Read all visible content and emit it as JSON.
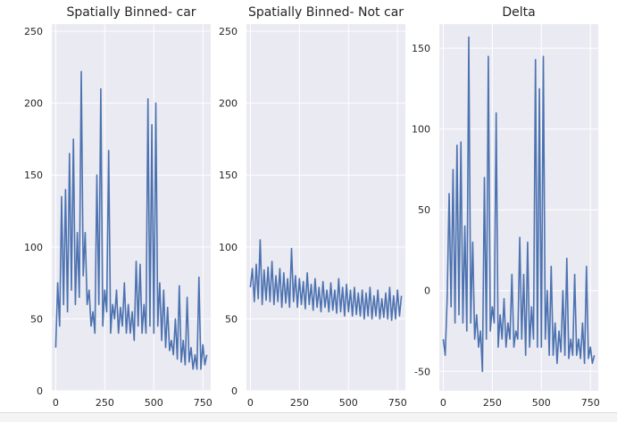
{
  "chart_data": [
    {
      "type": "line",
      "title": "Spatially Binned- car",
      "xlabel": "",
      "ylabel": "",
      "xlim": [
        -20,
        790
      ],
      "ylim": [
        0,
        255
      ],
      "xticks": [
        0,
        250,
        500,
        750
      ],
      "yticks": [
        0,
        50,
        100,
        150,
        200,
        250
      ],
      "xtick_labels": [
        "0",
        "250",
        "500",
        "750"
      ],
      "ytick_labels": [
        "0",
        "50",
        "100",
        "150",
        "200",
        "250"
      ],
      "grid": true,
      "background": "#eaeaf2",
      "line_color": "#4c72b0",
      "series": [
        {
          "x": [
            0,
            10,
            20,
            30,
            40,
            50,
            60,
            70,
            80,
            90,
            100,
            110,
            120,
            130,
            140,
            150,
            160,
            170,
            180,
            190,
            200,
            210,
            220,
            230,
            240,
            250,
            260,
            270,
            280,
            290,
            300,
            310,
            320,
            330,
            340,
            350,
            360,
            370,
            380,
            390,
            400,
            410,
            420,
            430,
            440,
            450,
            460,
            470,
            480,
            490,
            500,
            510,
            520,
            530,
            540,
            550,
            560,
            570,
            580,
            590,
            600,
            610,
            620,
            630,
            640,
            650,
            660,
            670,
            680,
            690,
            700,
            710,
            720,
            730,
            740,
            750,
            760,
            770
          ],
          "y": [
            30,
            75,
            45,
            135,
            60,
            140,
            55,
            165,
            70,
            175,
            60,
            110,
            65,
            222,
            80,
            110,
            60,
            70,
            45,
            55,
            40,
            150,
            60,
            210,
            45,
            70,
            55,
            167,
            40,
            60,
            50,
            70,
            40,
            58,
            45,
            75,
            40,
            60,
            40,
            55,
            35,
            90,
            45,
            88,
            40,
            60,
            40,
            203,
            45,
            185,
            40,
            200,
            45,
            75,
            35,
            70,
            30,
            58,
            28,
            35,
            25,
            50,
            22,
            73,
            20,
            35,
            18,
            65,
            20,
            30,
            15,
            25,
            15,
            79,
            15,
            32,
            18,
            25
          ]
        }
      ]
    },
    {
      "type": "line",
      "title": "Spatially Binned- Not car",
      "xlabel": "",
      "ylabel": "",
      "xlim": [
        -20,
        790
      ],
      "ylim": [
        0,
        255
      ],
      "xticks": [
        0,
        250,
        500,
        750
      ],
      "yticks": [
        0,
        50,
        100,
        150,
        200,
        250
      ],
      "xtick_labels": [
        "0",
        "250",
        "500",
        "750"
      ],
      "ytick_labels": [
        "0",
        "50",
        "100",
        "150",
        "200",
        "250"
      ],
      "grid": true,
      "background": "#eaeaf2",
      "line_color": "#4c72b0",
      "series": [
        {
          "x": [
            0,
            10,
            20,
            30,
            40,
            50,
            60,
            70,
            80,
            90,
            100,
            110,
            120,
            130,
            140,
            150,
            160,
            170,
            180,
            190,
            200,
            210,
            220,
            230,
            240,
            250,
            260,
            270,
            280,
            290,
            300,
            310,
            320,
            330,
            340,
            350,
            360,
            370,
            380,
            390,
            400,
            410,
            420,
            430,
            440,
            450,
            460,
            470,
            480,
            490,
            500,
            510,
            520,
            530,
            540,
            550,
            560,
            570,
            580,
            590,
            600,
            610,
            620,
            630,
            640,
            650,
            660,
            670,
            680,
            690,
            700,
            710,
            720,
            730,
            740,
            750,
            760,
            770
          ],
          "y": [
            72,
            85,
            62,
            88,
            64,
            105,
            60,
            84,
            63,
            86,
            62,
            90,
            60,
            80,
            62,
            85,
            58,
            82,
            61,
            78,
            58,
            99,
            62,
            80,
            58,
            78,
            60,
            76,
            57,
            82,
            60,
            74,
            56,
            78,
            58,
            72,
            55,
            76,
            58,
            70,
            55,
            75,
            56,
            70,
            54,
            78,
            55,
            72,
            52,
            74,
            55,
            70,
            52,
            72,
            53,
            68,
            52,
            70,
            50,
            68,
            52,
            72,
            50,
            66,
            52,
            70,
            50,
            64,
            51,
            68,
            50,
            72,
            49,
            66,
            50,
            70,
            52,
            66
          ]
        }
      ]
    },
    {
      "type": "line",
      "title": "Delta",
      "xlabel": "",
      "ylabel": "",
      "xlim": [
        -20,
        790
      ],
      "ylim": [
        -62,
        165
      ],
      "xticks": [
        0,
        250,
        500,
        750
      ],
      "yticks": [
        -50,
        0,
        50,
        100,
        150
      ],
      "xtick_labels": [
        "0",
        "250",
        "500",
        "750"
      ],
      "ytick_labels": [
        "-50",
        "0",
        "50",
        "100",
        "150"
      ],
      "grid": true,
      "background": "#eaeaf2",
      "line_color": "#4c72b0",
      "series": [
        {
          "x": [
            0,
            10,
            20,
            30,
            40,
            50,
            60,
            70,
            80,
            90,
            100,
            110,
            120,
            130,
            140,
            150,
            160,
            170,
            180,
            190,
            200,
            210,
            220,
            230,
            240,
            250,
            260,
            270,
            280,
            290,
            300,
            310,
            320,
            330,
            340,
            350,
            360,
            370,
            380,
            390,
            400,
            410,
            420,
            430,
            440,
            450,
            460,
            470,
            480,
            490,
            500,
            510,
            520,
            530,
            540,
            550,
            560,
            570,
            580,
            590,
            600,
            610,
            620,
            630,
            640,
            650,
            660,
            670,
            680,
            690,
            700,
            710,
            720,
            730,
            740,
            750,
            760,
            770
          ],
          "y": [
            -30,
            -40,
            -5,
            60,
            -10,
            75,
            -20,
            90,
            -15,
            92,
            -20,
            40,
            -25,
            157,
            -20,
            30,
            -30,
            -15,
            -35,
            -25,
            -50,
            70,
            -30,
            145,
            -25,
            -10,
            -20,
            110,
            -35,
            -15,
            -30,
            -5,
            -35,
            -20,
            -30,
            10,
            -35,
            -25,
            -30,
            33,
            -30,
            10,
            -40,
            30,
            -35,
            -10,
            -30,
            143,
            -35,
            125,
            -35,
            145,
            -30,
            0,
            -40,
            15,
            -40,
            -20,
            -45,
            -25,
            -38,
            0,
            -40,
            20,
            -42,
            -30,
            -40,
            10,
            -40,
            -30,
            -42,
            -20,
            -45,
            15,
            -42,
            -35,
            -45,
            -40
          ]
        }
      ]
    }
  ]
}
